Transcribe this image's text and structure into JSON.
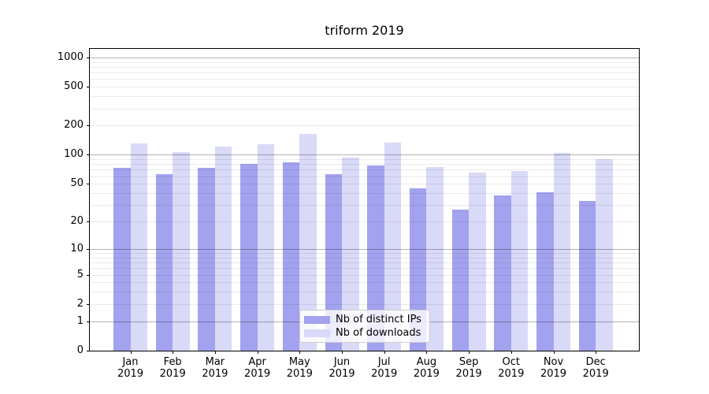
{
  "title": "triform 2019",
  "chart_data": {
    "type": "bar",
    "title": "triform 2019",
    "categories": [
      "Jan",
      "Feb",
      "Mar",
      "Apr",
      "May",
      "Jun",
      "Jul",
      "Aug",
      "Sep",
      "Oct",
      "Nov",
      "Dec"
    ],
    "year": "2019",
    "series": [
      {
        "name": "Nb of distinct IPs",
        "color": "#a2a2ef",
        "values": [
          74,
          63,
          74,
          80,
          84,
          63,
          77,
          45,
          27,
          38,
          41,
          33
        ]
      },
      {
        "name": "Nb of downloads",
        "color": "#d9d9f8",
        "values": [
          132,
          106,
          121,
          129,
          165,
          93,
          134,
          75,
          65,
          68,
          104,
          90
        ]
      }
    ],
    "yscale": "log1p",
    "y_ticks": [
      0,
      1,
      2,
      5,
      10,
      20,
      50,
      100,
      200,
      500,
      1000
    ],
    "y_major_gridlines": [
      1,
      10,
      100,
      1000
    ],
    "ylim": [
      0,
      1220
    ],
    "grid": true,
    "legend_position": "lower center"
  }
}
